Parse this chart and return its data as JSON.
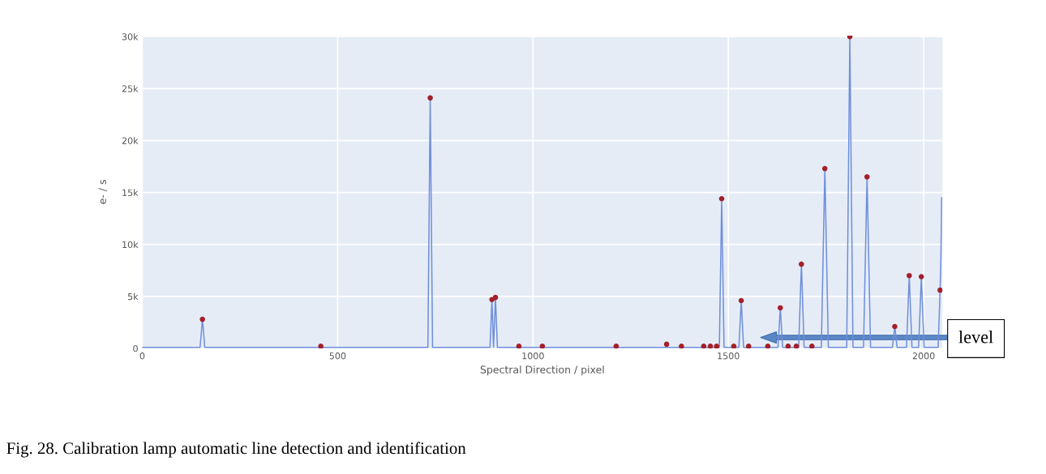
{
  "chart_data": {
    "type": "line",
    "xlabel": "Spectral Direction / pixel",
    "ylabel": "e- / s",
    "xlim": [
      0,
      2048
    ],
    "ylim": [
      0,
      30100
    ],
    "xticks": [
      0,
      500,
      1000,
      1500,
      2000
    ],
    "yticks": [
      {
        "value": 0,
        "label": "0"
      },
      {
        "value": 5000,
        "label": "5k"
      },
      {
        "value": 10000,
        "label": "10k"
      },
      {
        "value": 15000,
        "label": "15k"
      },
      {
        "value": 20000,
        "label": "20k"
      },
      {
        "value": 25000,
        "label": "25k"
      },
      {
        "value": 30000,
        "label": "30k"
      }
    ],
    "grid": true,
    "series": [
      {
        "color": "#6f8fdb",
        "marker": "none",
        "x": [
          0,
          148,
          154,
          160,
          731,
          737,
          743,
          890,
          895,
          899,
          904,
          909,
          1477,
          1483,
          1489,
          1527,
          1533,
          1539,
          1627,
          1633,
          1639,
          1680,
          1687,
          1694,
          1738,
          1747,
          1756,
          1803,
          1811,
          1819,
          1846,
          1855,
          1864,
          1920,
          1926,
          1932,
          1956,
          1963,
          1970,
          1987,
          1994,
          2001,
          2037,
          2042,
          2044,
          2046
        ],
        "values": [
          100,
          100,
          2800,
          100,
          100,
          24100,
          100,
          100,
          4700,
          100,
          4900,
          100,
          100,
          14400,
          100,
          100,
          4600,
          100,
          100,
          3900,
          100,
          100,
          8100,
          100,
          100,
          17300,
          100,
          100,
          30000,
          100,
          100,
          16500,
          100,
          100,
          2100,
          100,
          100,
          7000,
          100,
          100,
          6900,
          100,
          100,
          5600,
          8500,
          14500
        ]
      },
      {
        "type": "scatter",
        "color": "#a3202a",
        "marker": "circle",
        "x": [
          154,
          457,
          737,
          895,
          904,
          964,
          1024,
          1213,
          1342,
          1380,
          1437,
          1454,
          1470,
          1483,
          1514,
          1533,
          1552,
          1601,
          1633,
          1653,
          1674,
          1687,
          1714,
          1747,
          1811,
          1855,
          1926,
          1963,
          1994,
          2042
        ],
        "values": [
          2800,
          200,
          24100,
          4700,
          4900,
          200,
          200,
          200,
          400,
          200,
          200,
          200,
          200,
          14400,
          200,
          4600,
          200,
          200,
          3900,
          200,
          200,
          8100,
          200,
          17300,
          30000,
          16500,
          2100,
          7000,
          6900,
          5600
        ]
      }
    ],
    "annotations": [
      "level",
      "Fig. 28. Calibration lamp automatic line detection and identification"
    ]
  }
}
